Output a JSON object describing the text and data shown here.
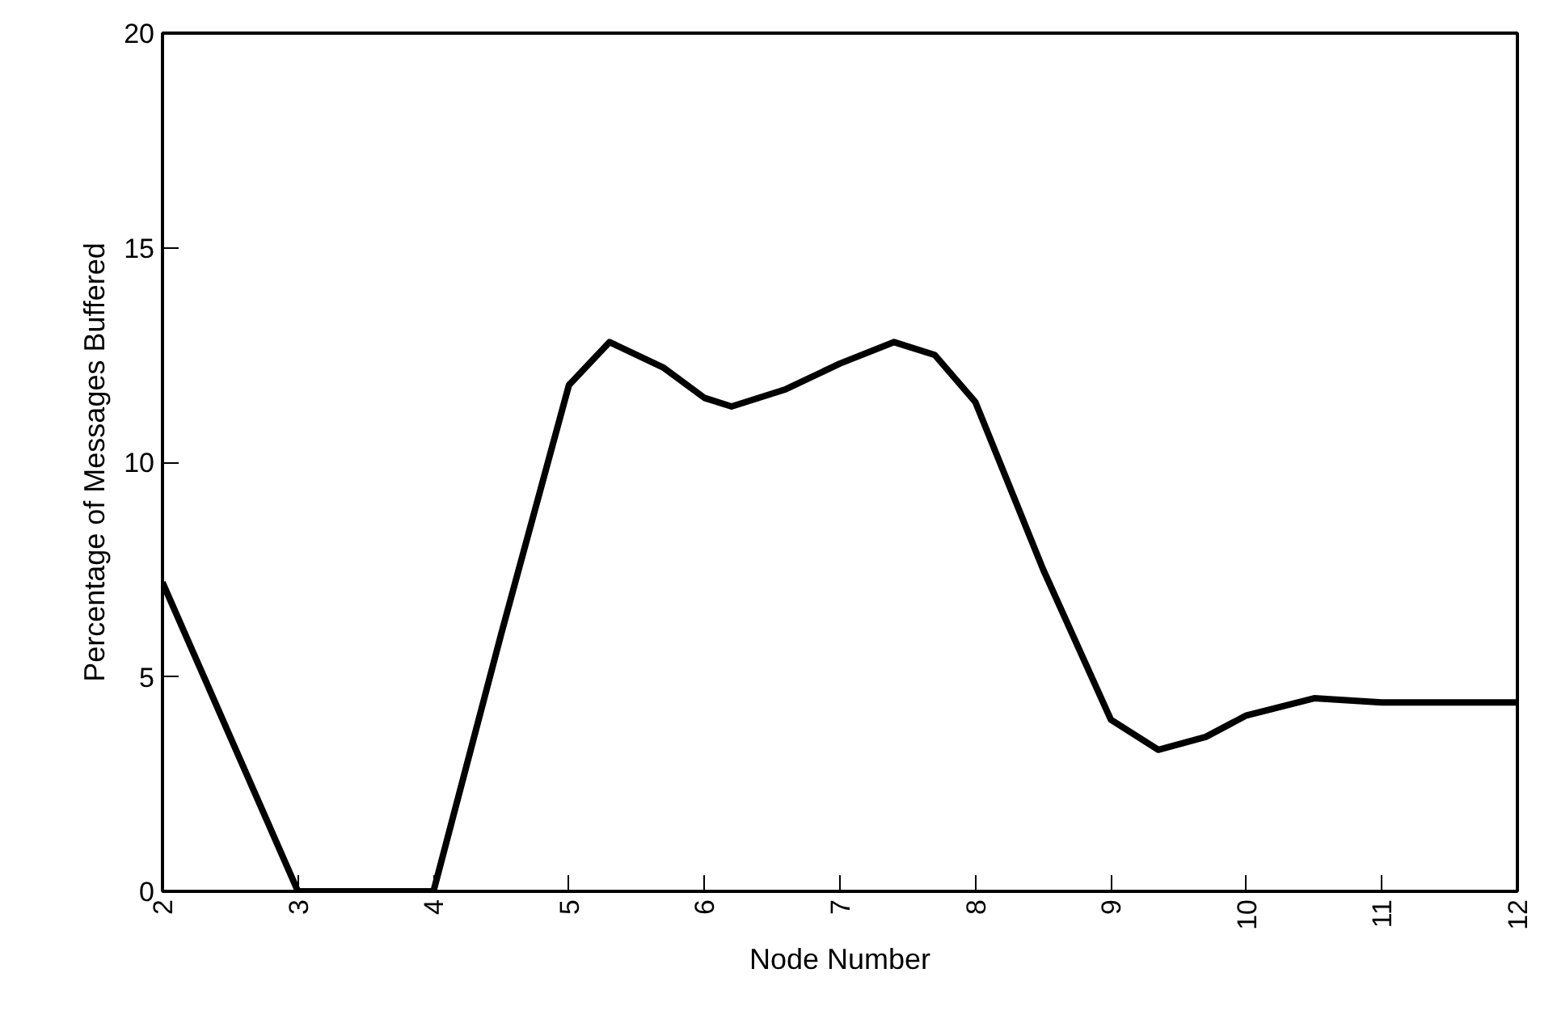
{
  "chart_data": {
    "type": "line",
    "xlabel": "Node Number",
    "ylabel": "Percentage of Messages Buffered",
    "x": [
      2,
      2.5,
      3,
      4,
      4.5,
      5,
      5.3,
      5.7,
      6,
      6.2,
      6.6,
      7,
      7.4,
      7.7,
      8,
      8.5,
      9,
      9.35,
      9.7,
      10,
      10.5,
      11,
      11.5,
      12
    ],
    "series": [
      {
        "color": "#000000",
        "values": [
          7.2,
          3.6,
          0,
          0,
          6,
          11.8,
          12.8,
          12.2,
          11.5,
          11.3,
          11.7,
          12.3,
          12.8,
          12.5,
          11.4,
          7.5,
          4.0,
          3.3,
          3.6,
          4.1,
          4.5,
          4.4,
          4.4,
          4.4
        ]
      }
    ],
    "xlim": [
      2,
      12
    ],
    "ylim": [
      0,
      20
    ],
    "xticks": [
      2,
      3,
      4,
      5,
      6,
      7,
      8,
      9,
      10,
      11,
      12
    ],
    "yticks": [
      0,
      5,
      10,
      15,
      20
    ],
    "grid": false,
    "marker": "none",
    "line_style": "solid"
  }
}
